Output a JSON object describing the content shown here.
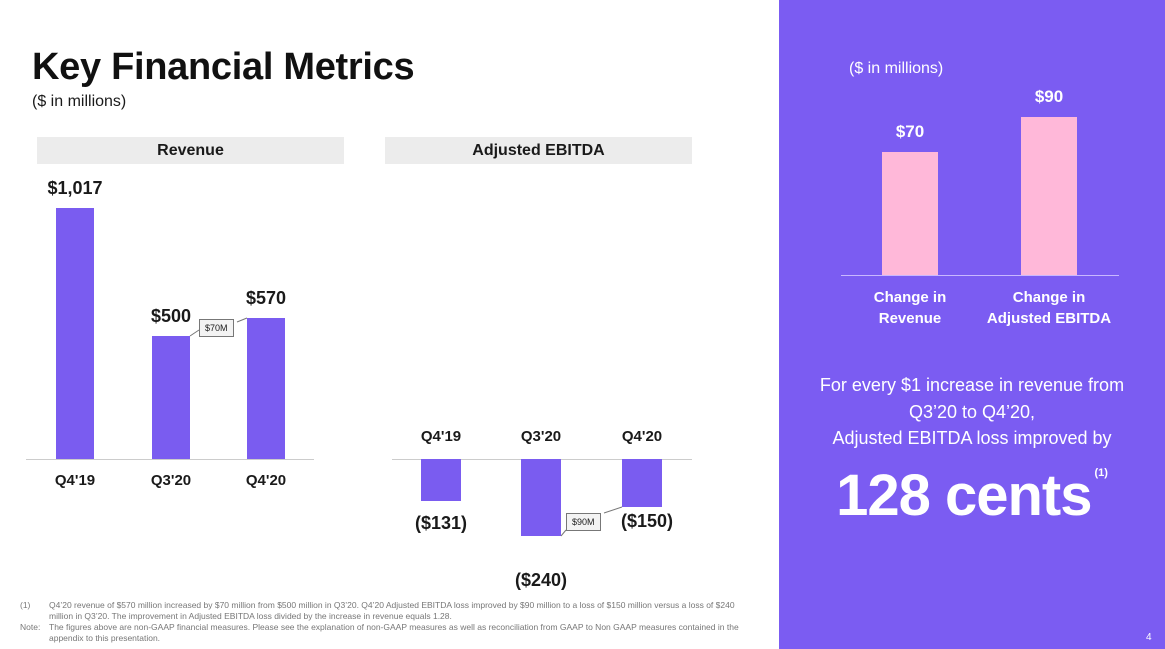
{
  "title": "Key Financial Metrics",
  "subtitle": "($ in millions)",
  "chart_data": [
    {
      "type": "bar",
      "title": "Revenue",
      "categories": [
        "Q4'19",
        "Q3'20",
        "Q4'20"
      ],
      "values": [
        1017,
        500,
        570
      ],
      "labels": [
        "$1,017",
        "$500",
        "$570"
      ],
      "annotation": "$70M"
    },
    {
      "type": "bar",
      "title": "Adjusted EBITDA",
      "categories": [
        "Q4'19",
        "Q3'20",
        "Q4'20"
      ],
      "values": [
        -131,
        -240,
        -150
      ],
      "labels": [
        "($131)",
        "($240)",
        "($150)"
      ],
      "annotation": "$90M"
    },
    {
      "type": "bar",
      "subtitle": "($ in millions)",
      "categories": [
        "Change in Revenue",
        "Change in Adjusted EBITDA"
      ],
      "category_lines": [
        [
          "Change in",
          "Revenue"
        ],
        [
          "Change in",
          "Adjusted EBITDA"
        ]
      ],
      "values": [
        70,
        90
      ],
      "labels": [
        "$70",
        "$90"
      ],
      "color": "#ffb8d9"
    }
  ],
  "panel": {
    "statement_lines": [
      "For every $1 increase in revenue from",
      "Q3’20 to Q4’20,",
      "Adjusted EBITDA loss improved by"
    ],
    "big": "128 cents",
    "footnote_ref": "(1)",
    "background": "#7b5cf2"
  },
  "footnotes": [
    {
      "key": "(1)",
      "text": "Q4’20 revenue of $570 million increased by $70 million from $500 million in Q3’20. Q4’20 Adjusted EBITDA loss improved by $90 million to a loss of $150 million versus a loss of $240 million in Q3’20. The improvement in Adjusted EBITDA loss divided by the increase in revenue equals 1.28."
    },
    {
      "key": "Note:",
      "text": "The figures above are non-GAAP financial measures.  Please see the explanation of non-GAAP measures as well as reconciliation from GAAP to Non GAAP measures contained in the appendix to this presentation."
    }
  ],
  "page_number": "4",
  "bar_color": "#7a5cf0"
}
